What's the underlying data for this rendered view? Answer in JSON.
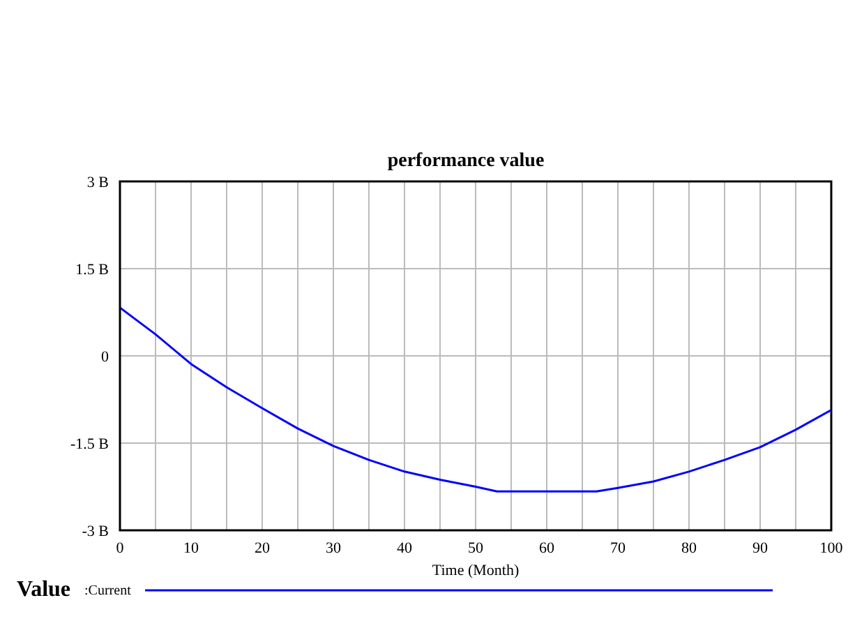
{
  "chart_data": {
    "type": "line",
    "title": "performance value",
    "xlabel": "Time (Month)",
    "legend_title": "Value",
    "legend": "bottom left",
    "grid": true,
    "marker": "none",
    "line_style": "solid",
    "x": [
      0,
      5,
      10,
      15,
      20,
      25,
      30,
      35,
      40,
      45,
      50,
      53,
      60,
      67,
      70,
      75,
      80,
      85,
      90,
      95,
      100
    ],
    "series": [
      {
        "name": ":Current",
        "color": "#0000ff",
        "values": [
          0.83,
          0.37,
          -0.14,
          -0.54,
          -0.9,
          -1.25,
          -1.55,
          -1.79,
          -1.99,
          -2.13,
          -2.25,
          -2.33,
          -2.33,
          -2.33,
          -2.27,
          -2.16,
          -1.99,
          -1.79,
          -1.57,
          -1.27,
          -0.93
        ]
      }
    ],
    "xlim": [
      0,
      100
    ],
    "xticks": [
      0,
      {
        "value": 5,
        "label": null
      },
      10,
      {
        "value": 15,
        "label": null
      },
      20,
      {
        "value": 25,
        "label": null
      },
      30,
      {
        "value": 35,
        "label": null
      },
      40,
      {
        "value": 45,
        "label": null
      },
      50,
      {
        "value": 55,
        "label": null
      },
      60,
      {
        "value": 65,
        "label": null
      },
      70,
      {
        "value": 75,
        "label": null
      },
      80,
      {
        "value": 85,
        "label": null
      },
      90,
      {
        "value": 95,
        "label": null
      },
      100
    ],
    "ylim": [
      -3,
      3
    ],
    "yticks": [
      {
        "value": 3,
        "label": "3 B"
      },
      {
        "value": 1.5,
        "label": "1.5 B"
      },
      0,
      {
        "value": -1.5,
        "label": "-1.5 B"
      },
      {
        "value": -3,
        "label": "-3 B"
      }
    ]
  }
}
